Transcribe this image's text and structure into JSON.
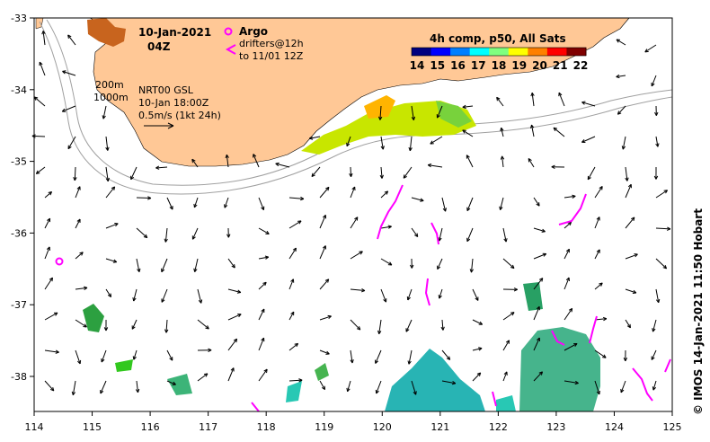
{
  "header": {
    "date": "10-Jan-2021",
    "time": "04Z"
  },
  "legend": {
    "argo_label": "Argo",
    "drifters_line1": "drifters@12h",
    "drifters_line2": "to 11/01 12Z",
    "drifter_color": "#ff00ff"
  },
  "info": {
    "contour_200": "200m",
    "contour_1000": "1000m",
    "source": "NRT00 GSL",
    "valid": "10-Jan 18:00Z",
    "scale": "0.5m/s (1kt 24h)"
  },
  "colorbar": {
    "title": "4h comp, p50, All Sats",
    "ticks": [
      "14",
      "15",
      "16",
      "17",
      "18",
      "19",
      "20",
      "21",
      "22"
    ],
    "colors": [
      "#00007f",
      "#0000ff",
      "#007fff",
      "#00ffff",
      "#7fff7f",
      "#ffff00",
      "#ff7f00",
      "#ff0000",
      "#7f0000"
    ]
  },
  "axes": {
    "x_ticks": [
      "114",
      "115",
      "116",
      "117",
      "118",
      "119",
      "120",
      "121",
      "122",
      "123",
      "124",
      "125"
    ],
    "y_ticks": [
      "-33",
      "-34",
      "-35",
      "-36",
      "-37",
      "-38"
    ]
  },
  "credit": "© IMOS 14-Jan-2021 11:50 Hobart",
  "colors": {
    "land": "#ffc896",
    "contour": "#a0a0a0",
    "arrow": "#000000"
  }
}
